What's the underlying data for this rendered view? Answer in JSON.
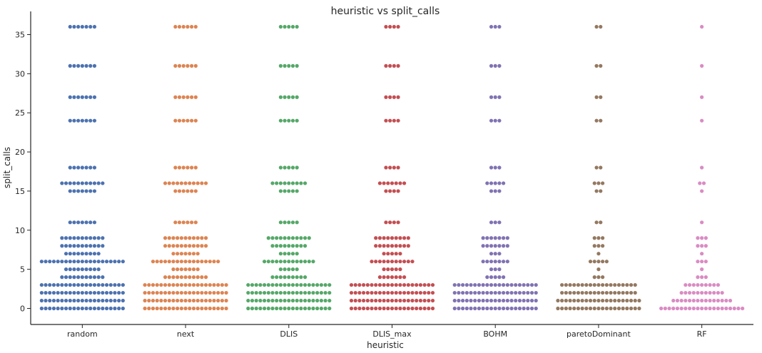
{
  "chart_data": {
    "type": "swarm",
    "title": "heuristic vs split_calls",
    "xlabel": "heuristic",
    "ylabel": "split_calls",
    "categories": [
      "random",
      "next",
      "DLIS",
      "DLIS_max",
      "BOHM",
      "paretoDominant",
      "RF"
    ],
    "colors": [
      "#4c72b0",
      "#dd8452",
      "#55a868",
      "#c44e52",
      "#8172b3",
      "#937860",
      "#da8bc3"
    ],
    "ylim": [
      -2,
      38
    ],
    "yticks": [
      0,
      5,
      10,
      15,
      20,
      25,
      30,
      35
    ],
    "grid": false,
    "series": [
      {
        "category": "random",
        "counts": [
          {
            "y": 0,
            "n": 21
          },
          {
            "y": 1,
            "n": 21
          },
          {
            "y": 2,
            "n": 21
          },
          {
            "y": 3,
            "n": 21
          },
          {
            "y": 4,
            "n": 11
          },
          {
            "y": 5,
            "n": 9
          },
          {
            "y": 6,
            "n": 21
          },
          {
            "y": 7,
            "n": 9
          },
          {
            "y": 8,
            "n": 11
          },
          {
            "y": 9,
            "n": 11
          },
          {
            "y": 11,
            "n": 7
          },
          {
            "y": 15,
            "n": 7
          },
          {
            "y": 16,
            "n": 11
          },
          {
            "y": 18,
            "n": 7
          },
          {
            "y": 24,
            "n": 7
          },
          {
            "y": 27,
            "n": 7
          },
          {
            "y": 31,
            "n": 7
          },
          {
            "y": 36,
            "n": 7
          }
        ]
      },
      {
        "category": "next",
        "counts": [
          {
            "y": 0,
            "n": 21
          },
          {
            "y": 1,
            "n": 21
          },
          {
            "y": 2,
            "n": 21
          },
          {
            "y": 3,
            "n": 21
          },
          {
            "y": 4,
            "n": 11
          },
          {
            "y": 5,
            "n": 7
          },
          {
            "y": 6,
            "n": 17
          },
          {
            "y": 7,
            "n": 7
          },
          {
            "y": 8,
            "n": 11
          },
          {
            "y": 9,
            "n": 11
          },
          {
            "y": 11,
            "n": 6
          },
          {
            "y": 15,
            "n": 6
          },
          {
            "y": 16,
            "n": 11
          },
          {
            "y": 18,
            "n": 6
          },
          {
            "y": 24,
            "n": 6
          },
          {
            "y": 27,
            "n": 6
          },
          {
            "y": 31,
            "n": 6
          },
          {
            "y": 36,
            "n": 6
          }
        ]
      },
      {
        "category": "DLIS",
        "counts": [
          {
            "y": 0,
            "n": 21
          },
          {
            "y": 1,
            "n": 21
          },
          {
            "y": 2,
            "n": 21
          },
          {
            "y": 3,
            "n": 21
          },
          {
            "y": 4,
            "n": 9
          },
          {
            "y": 5,
            "n": 5
          },
          {
            "y": 6,
            "n": 13
          },
          {
            "y": 7,
            "n": 5
          },
          {
            "y": 8,
            "n": 9
          },
          {
            "y": 9,
            "n": 11
          },
          {
            "y": 11,
            "n": 5
          },
          {
            "y": 15,
            "n": 5
          },
          {
            "y": 16,
            "n": 9
          },
          {
            "y": 18,
            "n": 5
          },
          {
            "y": 24,
            "n": 5
          },
          {
            "y": 27,
            "n": 5
          },
          {
            "y": 31,
            "n": 5
          },
          {
            "y": 36,
            "n": 5
          }
        ]
      },
      {
        "category": "DLIS_max",
        "counts": [
          {
            "y": 0,
            "n": 21
          },
          {
            "y": 1,
            "n": 21
          },
          {
            "y": 2,
            "n": 21
          },
          {
            "y": 3,
            "n": 21
          },
          {
            "y": 4,
            "n": 7
          },
          {
            "y": 5,
            "n": 5
          },
          {
            "y": 6,
            "n": 11
          },
          {
            "y": 7,
            "n": 5
          },
          {
            "y": 8,
            "n": 9
          },
          {
            "y": 9,
            "n": 9
          },
          {
            "y": 11,
            "n": 4
          },
          {
            "y": 15,
            "n": 4
          },
          {
            "y": 16,
            "n": 7
          },
          {
            "y": 18,
            "n": 4
          },
          {
            "y": 24,
            "n": 4
          },
          {
            "y": 27,
            "n": 4
          },
          {
            "y": 31,
            "n": 4
          },
          {
            "y": 36,
            "n": 4
          }
        ]
      },
      {
        "category": "BOHM",
        "counts": [
          {
            "y": 0,
            "n": 21
          },
          {
            "y": 1,
            "n": 21
          },
          {
            "y": 2,
            "n": 21
          },
          {
            "y": 3,
            "n": 21
          },
          {
            "y": 4,
            "n": 5
          },
          {
            "y": 5,
            "n": 3
          },
          {
            "y": 6,
            "n": 7
          },
          {
            "y": 7,
            "n": 3
          },
          {
            "y": 8,
            "n": 7
          },
          {
            "y": 9,
            "n": 7
          },
          {
            "y": 11,
            "n": 3
          },
          {
            "y": 15,
            "n": 3
          },
          {
            "y": 16,
            "n": 5
          },
          {
            "y": 18,
            "n": 3
          },
          {
            "y": 24,
            "n": 3
          },
          {
            "y": 27,
            "n": 3
          },
          {
            "y": 31,
            "n": 3
          },
          {
            "y": 36,
            "n": 3
          }
        ]
      },
      {
        "category": "paretoDominant",
        "counts": [
          {
            "y": 0,
            "n": 21
          },
          {
            "y": 1,
            "n": 21
          },
          {
            "y": 2,
            "n": 19
          },
          {
            "y": 3,
            "n": 19
          },
          {
            "y": 4,
            "n": 3
          },
          {
            "y": 5,
            "n": 1
          },
          {
            "y": 6,
            "n": 5
          },
          {
            "y": 7,
            "n": 1
          },
          {
            "y": 8,
            "n": 3
          },
          {
            "y": 9,
            "n": 3
          },
          {
            "y": 11,
            "n": 2
          },
          {
            "y": 15,
            "n": 2
          },
          {
            "y": 16,
            "n": 3
          },
          {
            "y": 18,
            "n": 2
          },
          {
            "y": 24,
            "n": 2
          },
          {
            "y": 27,
            "n": 2
          },
          {
            "y": 31,
            "n": 2
          },
          {
            "y": 36,
            "n": 2
          }
        ]
      },
      {
        "category": "RF",
        "counts": [
          {
            "y": 0,
            "n": 21
          },
          {
            "y": 1,
            "n": 15
          },
          {
            "y": 2,
            "n": 11
          },
          {
            "y": 3,
            "n": 9
          },
          {
            "y": 4,
            "n": 3
          },
          {
            "y": 5,
            "n": 1
          },
          {
            "y": 6,
            "n": 3
          },
          {
            "y": 7,
            "n": 1
          },
          {
            "y": 8,
            "n": 3
          },
          {
            "y": 9,
            "n": 3
          },
          {
            "y": 11,
            "n": 1
          },
          {
            "y": 15,
            "n": 1
          },
          {
            "y": 16,
            "n": 2
          },
          {
            "y": 18,
            "n": 1
          },
          {
            "y": 24,
            "n": 1
          },
          {
            "y": 27,
            "n": 1
          },
          {
            "y": 31,
            "n": 1
          },
          {
            "y": 36,
            "n": 1
          }
        ]
      }
    ]
  }
}
